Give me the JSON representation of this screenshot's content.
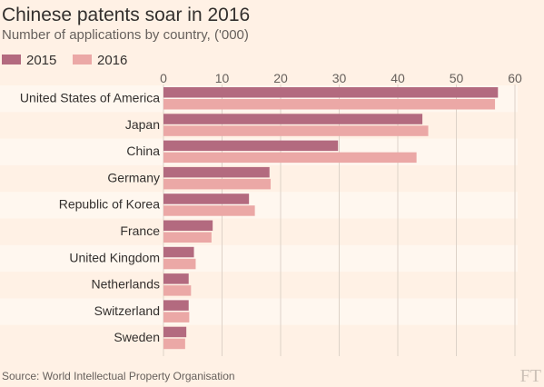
{
  "chart_data": {
    "type": "bar",
    "orientation": "horizontal",
    "title": "Chinese patents soar in 2016",
    "subtitle": "Number of applications by country, ('000)",
    "source": "Source: World Intellectual Property Organisation",
    "logo": "FT",
    "categories": [
      "United States of America",
      "Japan",
      "China",
      "Germany",
      "Republic of Korea",
      "France",
      "United Kingdom",
      "Netherlands",
      "Switzerland",
      "Sweden"
    ],
    "series": [
      {
        "name": "2015",
        "color": "#b36a7f",
        "values": [
          57.1,
          44.2,
          29.8,
          18.1,
          14.6,
          8.4,
          5.2,
          4.3,
          4.3,
          3.9
        ]
      },
      {
        "name": "2016",
        "color": "#eba8a6",
        "values": [
          56.6,
          45.2,
          43.2,
          18.3,
          15.6,
          8.2,
          5.5,
          4.7,
          4.4,
          3.7
        ]
      }
    ],
    "xlim": [
      0,
      60
    ],
    "xticks": [
      0,
      10,
      20,
      30,
      40,
      50,
      60
    ],
    "grid": true,
    "legend_position": "top-left",
    "band_color": "#fff7ef",
    "grid_color": "#ddd2c8"
  }
}
